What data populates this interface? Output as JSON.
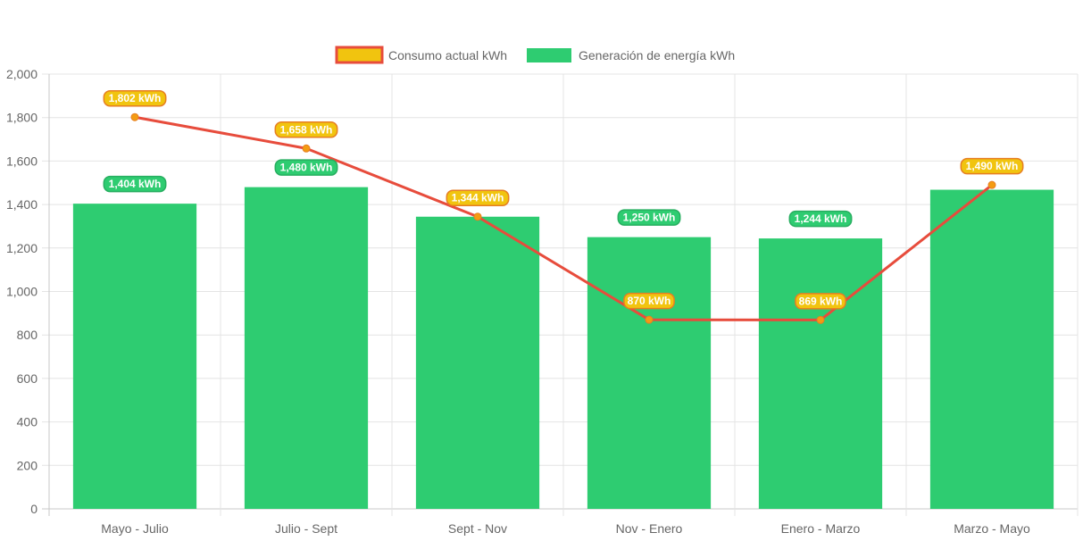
{
  "chart_data": {
    "type": "bar",
    "title": "",
    "xlabel": "",
    "ylabel": "",
    "ylim": [
      0,
      2000
    ],
    "y_ticks": [
      "0",
      "200",
      "400",
      "600",
      "800",
      "1,000",
      "1,200",
      "1,400",
      "1,600",
      "1,800",
      "2,000"
    ],
    "y_tick_values": [
      0,
      200,
      400,
      600,
      800,
      1000,
      1200,
      1400,
      1600,
      1800,
      2000
    ],
    "grid": true,
    "legend_position": "top-center",
    "categories": [
      "Mayo - Julio",
      "Julio - Sept",
      "Sept - Nov",
      "Nov - Enero",
      "Enero - Marzo",
      "Marzo - Mayo"
    ],
    "series": [
      {
        "name": "Consumo actual kWh",
        "type": "line",
        "color": "#e74c3c",
        "fill": "#f1c40f",
        "values": [
          1802,
          1658,
          1344,
          870,
          869,
          1490
        ],
        "labels": [
          "1,802 kWh",
          "1,658 kWh",
          "1,344 kWh",
          "870 kWh",
          "869 kWh",
          "1,490 kWh"
        ]
      },
      {
        "name": "Generación de energía kWh",
        "type": "bar",
        "color": "#2ecc71",
        "values": [
          1404,
          1480,
          1344,
          1250,
          1244,
          1468
        ],
        "labels": [
          "1,404 kWh",
          "1,480 kWh",
          "",
          "1,250 kWh",
          "1,244 kWh",
          ""
        ]
      }
    ]
  }
}
